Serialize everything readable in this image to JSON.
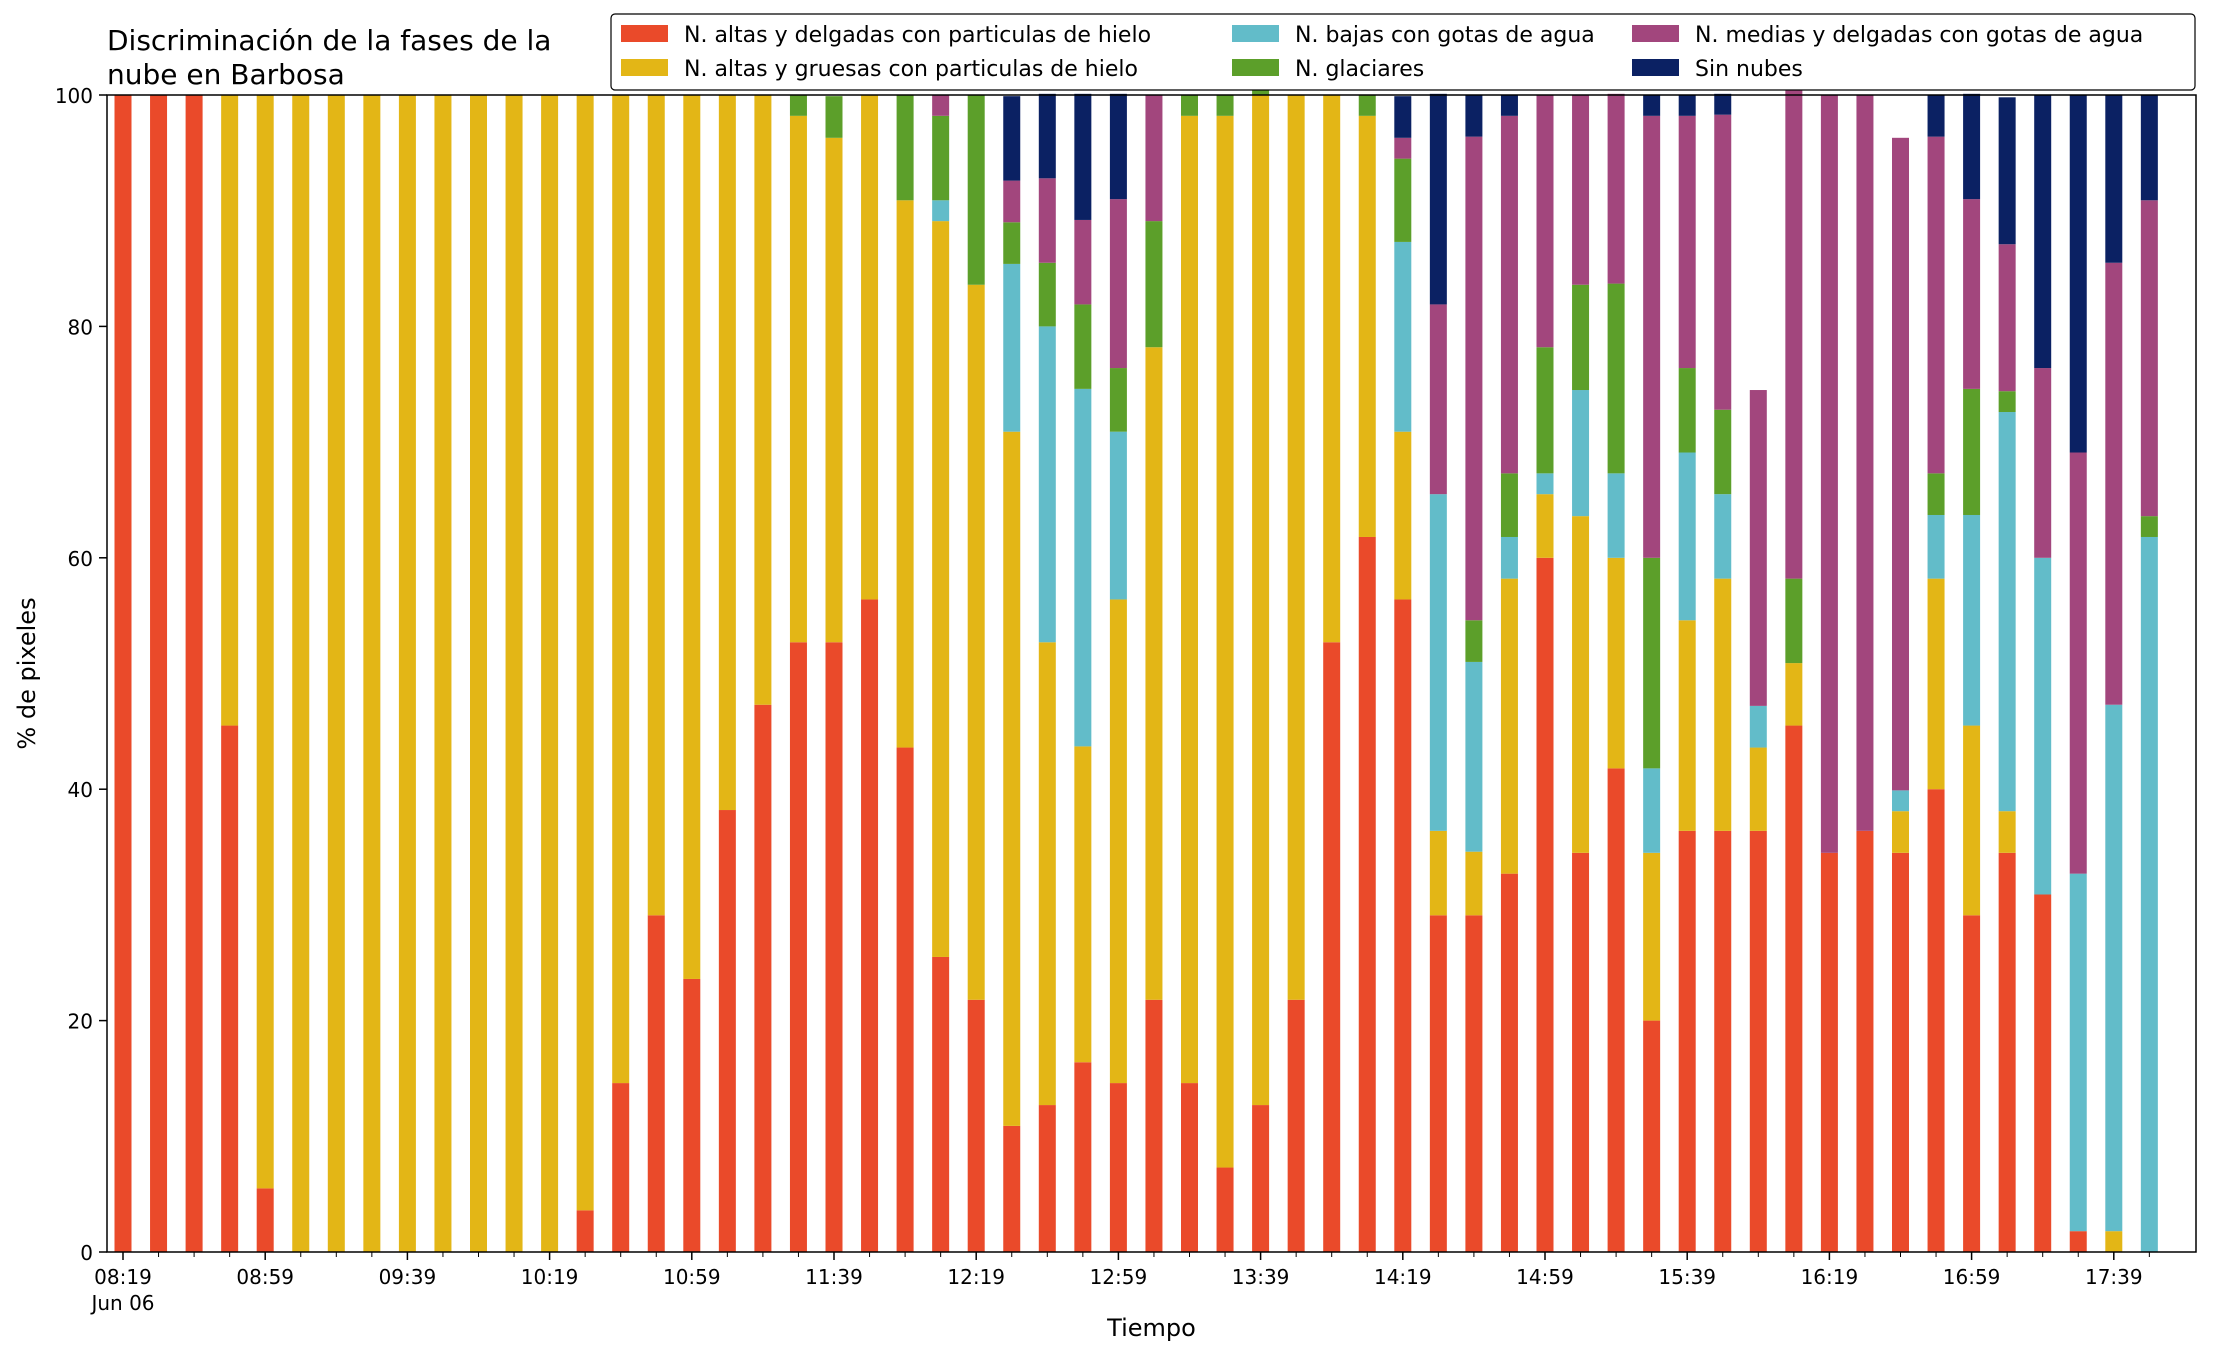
{
  "chart_data": {
    "type": "bar",
    "stacked": true,
    "title": "Discriminación de la fases de la\nnube en Barbosa",
    "xlabel": "Tiempo",
    "ylabel": "% de pixeles",
    "ylim": [
      0,
      100
    ],
    "yticks": [
      0,
      20,
      40,
      60,
      80,
      100
    ],
    "x_tick_labels": [
      "08:19",
      "08:59",
      "09:39",
      "10:19",
      "10:59",
      "11:39",
      "12:19",
      "12:59",
      "13:39",
      "14:19",
      "14:59",
      "15:39",
      "16:19",
      "16:59",
      "17:39"
    ],
    "x_date_label": "Jun 06",
    "legend_position": "top-right",
    "legend_columns": 3,
    "grid": false,
    "categories": [
      "08:19",
      "08:29",
      "08:39",
      "08:49",
      "08:59",
      "09:09",
      "09:19",
      "09:29",
      "09:39",
      "09:49",
      "09:59",
      "10:09",
      "10:19",
      "10:29",
      "10:39",
      "10:49",
      "10:59",
      "11:09",
      "11:19",
      "11:29",
      "11:39",
      "11:49",
      "11:59",
      "12:09",
      "12:19",
      "12:29",
      "12:39",
      "12:49",
      "12:59",
      "13:09",
      "13:19",
      "13:29",
      "13:39",
      "13:49",
      "13:59",
      "14:09",
      "14:19",
      "14:29",
      "14:39",
      "14:49",
      "14:59",
      "15:09",
      "15:19",
      "15:29",
      "15:39",
      "15:49",
      "15:59",
      "16:09",
      "16:19",
      "16:29",
      "16:39",
      "16:49",
      "16:59",
      "17:09",
      "17:19",
      "17:29",
      "17:39",
      "17:49"
    ],
    "series": [
      {
        "name": "N. altas y delgadas con particulas de hielo",
        "color": "#ea4a2a",
        "values": [
          100,
          100,
          100,
          45.5,
          5.5,
          0,
          0,
          0,
          0,
          0,
          0,
          0,
          0,
          3.6,
          14.6,
          29.1,
          23.6,
          38.2,
          47.3,
          52.7,
          52.7,
          56.4,
          43.6,
          25.5,
          21.8,
          10.9,
          12.7,
          16.4,
          14.6,
          21.8,
          14.6,
          7.3,
          12.7,
          21.8,
          52.7,
          61.8,
          56.4,
          29.1,
          29.1,
          32.7,
          60,
          34.5,
          41.8,
          20,
          36.4,
          36.4,
          36.4,
          45.5,
          34.5,
          36.4,
          34.5,
          40,
          29.1,
          34.5,
          30.9,
          1.8,
          0,
          0
        ]
      },
      {
        "name": "N. altas y gruesas con particulas de hielo",
        "color": "#e3b616",
        "values": [
          0,
          0,
          0,
          54.5,
          94.5,
          100,
          100,
          100,
          100,
          100,
          100,
          100,
          100,
          96.4,
          85.4,
          70.9,
          76.4,
          61.8,
          52.7,
          45.5,
          43.6,
          43.6,
          47.3,
          63.6,
          61.8,
          60,
          40,
          27.3,
          41.8,
          56.4,
          83.6,
          90.9,
          87.3,
          78.2,
          47.3,
          36.4,
          14.5,
          7.3,
          5.5,
          25.5,
          5.5,
          29.1,
          18.2,
          14.5,
          18.2,
          21.8,
          7.2,
          5.4,
          0,
          0,
          3.6,
          18.2,
          16.4,
          3.6,
          0,
          0,
          1.8,
          0
        ]
      },
      {
        "name": "N. bajas con gotas de agua",
        "color": "#62bcc9",
        "values": [
          0,
          0,
          0,
          0,
          0,
          0,
          0,
          0,
          0,
          0,
          0,
          0,
          0,
          0,
          0,
          0,
          0,
          0,
          0,
          0,
          0,
          0,
          0,
          1.8,
          0,
          14.5,
          27.3,
          30.9,
          14.5,
          0,
          0,
          0,
          0,
          0,
          0,
          0,
          16.4,
          29.1,
          16.4,
          3.6,
          1.8,
          10.9,
          7.3,
          7.3,
          14.5,
          7.3,
          3.6,
          0,
          0,
          0,
          1.8,
          5.5,
          18.2,
          34.5,
          29.1,
          30.9,
          45.5,
          61.8
        ]
      },
      {
        "name": "N. glaciares",
        "color": "#5c9f2a",
        "values": [
          0,
          0,
          0,
          0,
          0,
          0,
          0,
          0,
          0,
          0,
          0,
          0,
          0,
          0,
          0,
          0,
          0,
          0,
          0,
          1.8,
          3.6,
          0,
          9.1,
          7.3,
          16.4,
          3.6,
          5.5,
          7.3,
          5.5,
          10.9,
          1.8,
          1.8,
          1.8,
          0,
          0,
          1.8,
          7.2,
          0,
          3.6,
          5.5,
          10.9,
          9.1,
          16.4,
          18.2,
          7.3,
          7.3,
          0,
          7.3,
          0,
          0,
          0,
          3.6,
          10.9,
          1.8,
          0,
          0,
          0,
          1.8
        ]
      },
      {
        "name": "N. medias y delgadas con gotas de agua",
        "color": "#a2467d",
        "values": [
          0,
          0,
          0,
          0,
          0,
          0,
          0,
          0,
          0,
          0,
          0,
          0,
          0,
          0,
          0,
          0,
          0,
          0,
          0,
          0,
          0,
          0,
          0,
          1.8,
          0,
          3.6,
          7.3,
          7.3,
          14.6,
          10.9,
          0,
          0,
          0,
          0,
          0,
          0,
          1.8,
          16.4,
          41.8,
          30.9,
          21.8,
          16.4,
          16.4,
          38.2,
          21.8,
          25.5,
          27.3,
          45.5,
          65.5,
          63.6,
          56.4,
          29.1,
          16.4,
          12.7,
          16.4,
          36.4,
          38.2,
          27.3
        ]
      },
      {
        "name": "Sin nubes",
        "color": "#0b2163",
        "values": [
          0,
          0,
          0,
          0,
          0,
          0,
          0,
          0,
          0,
          0,
          0,
          0,
          0,
          0,
          0,
          0,
          0,
          0,
          0,
          0,
          0,
          0,
          0,
          0,
          0,
          7.3,
          7.3,
          10.9,
          9.1,
          0,
          0,
          0,
          0,
          0,
          0,
          0,
          3.6,
          18.2,
          3.6,
          1.8,
          0,
          0,
          0,
          1.8,
          1.8,
          1.8,
          0,
          0,
          0,
          0,
          0,
          3.6,
          9.1,
          12.7,
          23.6,
          30.9,
          14.5,
          9.1
        ]
      }
    ]
  }
}
